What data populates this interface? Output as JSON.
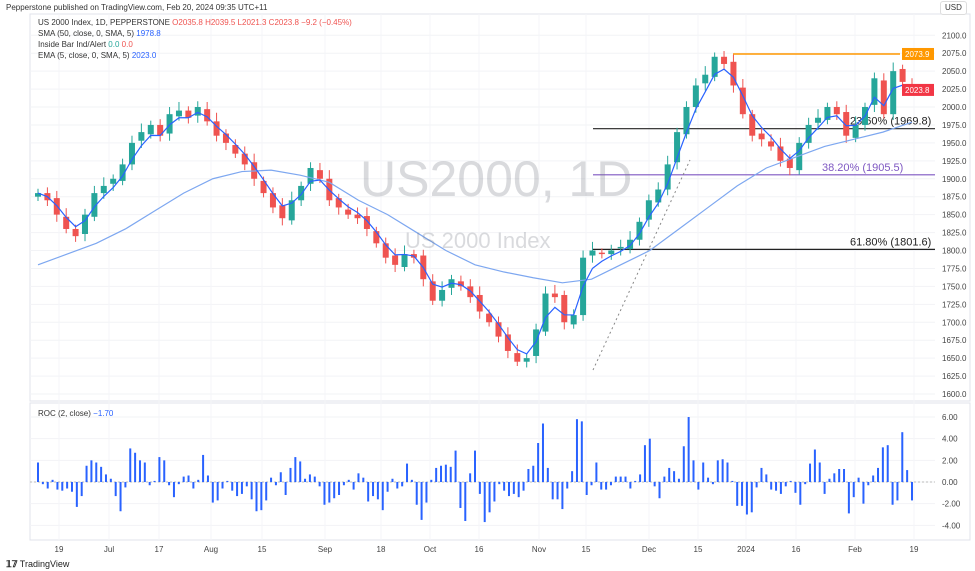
{
  "published": "Pepperstone published on TradingView.com, Feb 20, 2024 09:35 UTC+11",
  "legend": {
    "symbol": "US 2000 Index, 1D, PEPPERSTONE",
    "ohlc": "O2035.8 H2039.5 L2021.3 C2023.8 −9.2 (−0.45%)",
    "sma_label": "SMA (50, close, 0, SMA, 5)",
    "sma_value": "1978.8",
    "ib_label": "Inside Bar Ind/Alert",
    "ib_v1": "0.0",
    "ib_v2": "0.0",
    "ema_label": "EMA (5, close, 0, SMA, 5)",
    "ema_value": "2023.0"
  },
  "currency": "USD",
  "watermark": {
    "main": "US2000, 1D",
    "sub": "US 2000 Index"
  },
  "roc_label": "ROC (2, close)",
  "roc_value": "−1.70",
  "brand": "TradingView",
  "colors": {
    "up": "#26a69a",
    "down": "#ef5350",
    "sma": "#7da7f0",
    "ema": "#2962ff",
    "roc": "#2962ff",
    "fib_mid": "#7e57c2",
    "high_line": "#ff9800"
  },
  "chart_data": {
    "type": "candlestick",
    "price_axis": {
      "ticks": [
        "2100.0",
        "2075.0",
        "2050.0",
        "2025.0",
        "2000.0",
        "1975.0",
        "1950.0",
        "1925.0",
        "1900.0",
        "1875.0",
        "1850.0",
        "1825.0",
        "1800.0",
        "1775.0",
        "1750.0",
        "1725.0",
        "1700.0",
        "1675.0",
        "1650.0",
        "1625.0",
        "1600.0"
      ],
      "range": [
        1590,
        2110
      ]
    },
    "x_ticks": [
      "19",
      "Jul",
      "17",
      "Aug",
      "15",
      "Sep",
      "18",
      "Oct",
      "16",
      "Nov",
      "15",
      "Dec",
      "15",
      "2024",
      "16",
      "Feb",
      "19"
    ],
    "closes": [
      1880,
      1870,
      1850,
      1830,
      1820,
      1850,
      1880,
      1890,
      1900,
      1920,
      1950,
      1965,
      1975,
      1960,
      1990,
      1995,
      1985,
      2000,
      1980,
      1960,
      1950,
      1935,
      1920,
      1900,
      1880,
      1860,
      1845,
      1870,
      1890,
      1915,
      1900,
      1870,
      1860,
      1850,
      1845,
      1830,
      1810,
      1790,
      1780,
      1795,
      1790,
      1760,
      1730,
      1745,
      1760,
      1750,
      1735,
      1715,
      1700,
      1680,
      1660,
      1645,
      1650,
      1690,
      1740,
      1735,
      1700,
      1710,
      1790,
      1800,
      1795,
      1800,
      1805,
      1815,
      1840,
      1870,
      1885,
      1920,
      1965,
      2000,
      2030,
      2045,
      2070,
      2060,
      2030,
      1990,
      1960,
      1955,
      1945,
      1925,
      1915,
      1950,
      1975,
      1985,
      2000,
      1990,
      1960,
      1975,
      2000,
      2040,
      1990,
      2050,
      2035,
      2023.8
    ],
    "sma50": [
      1780,
      1795,
      1810,
      1830,
      1855,
      1880,
      1900,
      1910,
      1912,
      1905,
      1895,
      1870,
      1850,
      1825,
      1800,
      1780,
      1770,
      1762,
      1755,
      1760,
      1780,
      1800,
      1830,
      1860,
      1890,
      1915,
      1930,
      1945,
      1955,
      1965,
      1978.8
    ],
    "last_price": "2023.8",
    "high_level": "2073.9",
    "fib_levels": [
      {
        "label": "23.60% (1969.8)",
        "value": 1969.8
      },
      {
        "label": "38.20% (1905.5)",
        "value": 1905.5
      },
      {
        "label": "61.80% (1801.6)",
        "value": 1801.6
      }
    ],
    "roc": {
      "ticks": [
        "6.00",
        "4.00",
        "2.00",
        "0.00",
        "-2.00",
        "-4.00"
      ],
      "values": [
        1.8,
        -0.2,
        -0.6,
        0.2,
        -0.7,
        -0.8,
        -0.6,
        -0.9,
        -2.3,
        -1.3,
        1.5,
        2,
        1.8,
        1.4,
        0.7,
        0.3,
        -1.3,
        -2.7,
        -0.5,
        3.1,
        2.7,
        2,
        1.8,
        -0.3,
        0.1,
        2.3,
        2,
        -0.3,
        -1.4,
        -0.2,
        0.5,
        0.6,
        -0.6,
        0.2,
        2.5,
        0.6,
        -1.9,
        -1.7,
        -0.6,
        0.1,
        -0.8,
        -1.3,
        -1.1,
        -0.4,
        -1.6,
        -2.7,
        -2.6,
        -1.7,
        0.4,
        -0.3,
        0.9,
        -1.2,
        1.3,
        2.3,
        1.9,
        0.3,
        0.7,
        0.5,
        -0.4,
        -2.1,
        -1.9,
        -1.5,
        -1.2,
        -0.3,
        0.2,
        -0.7,
        0.8,
        0.4,
        -1.8,
        -1.3,
        -1.6,
        -2.6,
        -0.9,
        0.3,
        -0.6,
        -0.4,
        1.7,
        0.2,
        -2.1,
        -3.5,
        -1.9,
        0.2,
        1.3,
        1.5,
        1.6,
        1.4,
        2.9,
        -2.4,
        -3.6,
        0.8,
        2.9,
        -1.1,
        -3.7,
        -2.8,
        -1.8,
        -0.2,
        -0.8,
        -1.3,
        -1.1,
        -1.4,
        -0.8,
        1.2,
        1.5,
        3.6,
        5.4,
        1.3,
        -1.6,
        -1.6,
        -2.5,
        -0.6,
        1,
        5.8,
        5.6,
        -1.2,
        -0.3,
        1.8,
        -0.7,
        -0.7,
        -0.3,
        0.5,
        0.5,
        0.5,
        -0.6,
        0.1,
        0.7,
        3.4,
        4,
        -0.4,
        -1.5,
        0.5,
        1.3,
        1,
        0.3,
        3.3,
        6,
        2,
        -0.7,
        1.8,
        0.4,
        -0.2,
        2,
        2.1,
        1.8,
        0.1,
        -2.2,
        -2.2,
        -3,
        -2.8,
        -0.5,
        1.3,
        0.7,
        -0.7,
        -0.8,
        -1.1,
        -0.4,
        0.1,
        -1,
        -2.1,
        -0.2,
        1.7,
        3,
        1.8,
        -1.1,
        0.3,
        0.8,
        1.2,
        1.2,
        -2.9,
        -1.4,
        0.4,
        -2,
        -0.3,
        0.6,
        1.3,
        3.2,
        3.4,
        -2.1,
        -1.7,
        4.6,
        1.1,
        -1.7
      ]
    }
  }
}
